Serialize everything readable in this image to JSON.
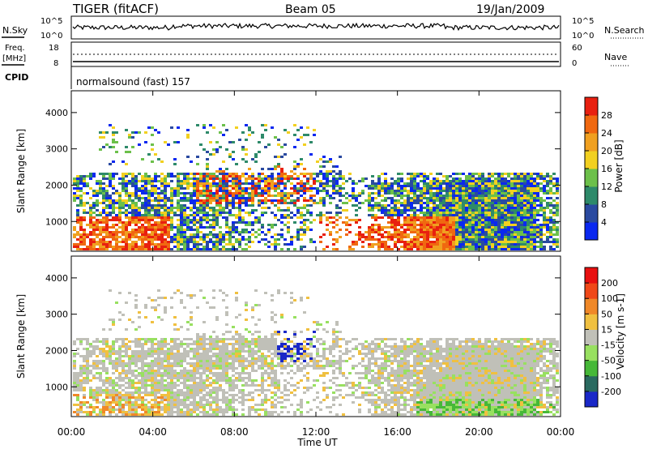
{
  "header": {
    "radar": "TIGER (fitACF)",
    "beam": "Beam 05",
    "date": "19/Jan/2009"
  },
  "top_panels": {
    "nsky_label": "N.Sky",
    "nsearch_label": "N.Search",
    "noise_ticks": [
      "10^5",
      "10^0"
    ],
    "freq_label": "Freq.",
    "freq_unit": "[MHz]",
    "freq_ticks": [
      "18",
      "8"
    ],
    "nave_label": "Nave",
    "nave_ticks": [
      "60",
      "0"
    ],
    "cpid_label": "CPID",
    "cpid_value": "normalsound (fast) 157"
  },
  "chart_data": [
    {
      "type": "heatmap",
      "name": "power",
      "ylabel": "Slant Range [km]",
      "ylim": [
        180,
        4600
      ],
      "yticks": [
        "4000",
        "3000",
        "2000",
        "1000"
      ],
      "xlim": [
        "00:00",
        "24:00"
      ],
      "colorbar_label": "Power [dB]",
      "colorbar_ticks": [
        "28",
        "24",
        "20",
        "16",
        "12",
        "8",
        "4"
      ],
      "colors": [
        "#0a28f0",
        "#2a4aa0",
        "#2e8a6a",
        "#6cc04a",
        "#f2d020",
        "#f0a020",
        "#f06810",
        "#e82010"
      ]
    },
    {
      "type": "heatmap",
      "name": "velocity",
      "ylabel": "Slant Range [km]",
      "ylim": [
        180,
        4600
      ],
      "yticks": [
        "4000",
        "3000",
        "2000",
        "1000"
      ],
      "xlim": [
        "00:00",
        "24:00"
      ],
      "colorbar_label": "Velocity [m s-1]",
      "colorbar_ticks": [
        "200",
        "100",
        "50",
        "15",
        "-15",
        "-50",
        "-100",
        "-200"
      ],
      "colors": [
        "#1a28c8",
        "#2a6a60",
        "#46b838",
        "#98e060",
        "#c0c0b8",
        "#f0c040",
        "#f08828",
        "#f04818",
        "#e81010"
      ]
    }
  ],
  "x_axis": {
    "ticks": [
      "00:00",
      "04:00",
      "08:00",
      "12:00",
      "16:00",
      "20:00",
      "00:00"
    ],
    "label": "Time UT"
  }
}
